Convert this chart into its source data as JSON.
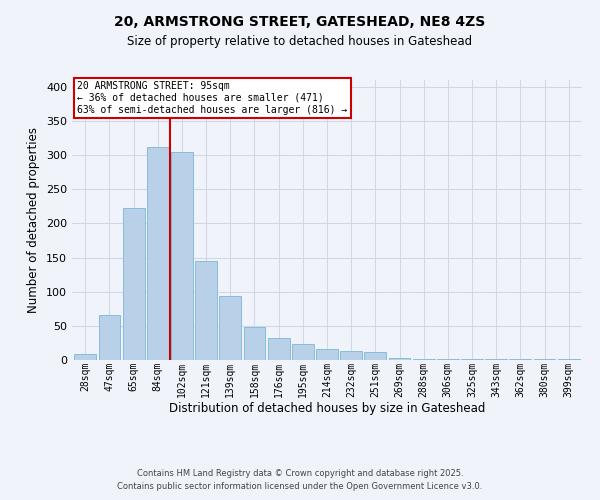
{
  "title": "20, ARMSTRONG STREET, GATESHEAD, NE8 4ZS",
  "subtitle": "Size of property relative to detached houses in Gateshead",
  "xlabel": "Distribution of detached houses by size in Gateshead",
  "ylabel": "Number of detached properties",
  "bin_labels": [
    "28sqm",
    "47sqm",
    "65sqm",
    "84sqm",
    "102sqm",
    "121sqm",
    "139sqm",
    "158sqm",
    "176sqm",
    "195sqm",
    "214sqm",
    "232sqm",
    "251sqm",
    "269sqm",
    "288sqm",
    "306sqm",
    "325sqm",
    "343sqm",
    "362sqm",
    "380sqm",
    "399sqm"
  ],
  "bar_values": [
    9,
    66,
    223,
    312,
    305,
    145,
    93,
    48,
    32,
    23,
    16,
    13,
    11,
    3,
    2,
    2,
    1,
    1,
    1,
    1,
    1
  ],
  "bar_color": "#b8d0e8",
  "bar_edgecolor": "#7ab8d8",
  "grid_color": "#d0d8e8",
  "property_line_color": "#cc0000",
  "annotation_title": "20 ARMSTRONG STREET: 95sqm",
  "annotation_line1": "← 36% of detached houses are smaller (471)",
  "annotation_line2": "63% of semi-detached houses are larger (816) →",
  "annotation_box_color": "#ffffff",
  "annotation_box_edgecolor": "#cc0000",
  "ylim": [
    0,
    410
  ],
  "yticks": [
    0,
    50,
    100,
    150,
    200,
    250,
    300,
    350,
    400
  ],
  "footer1": "Contains HM Land Registry data © Crown copyright and database right 2025.",
  "footer2": "Contains public sector information licensed under the Open Government Licence v3.0.",
  "bg_color": "#f0f4fa"
}
